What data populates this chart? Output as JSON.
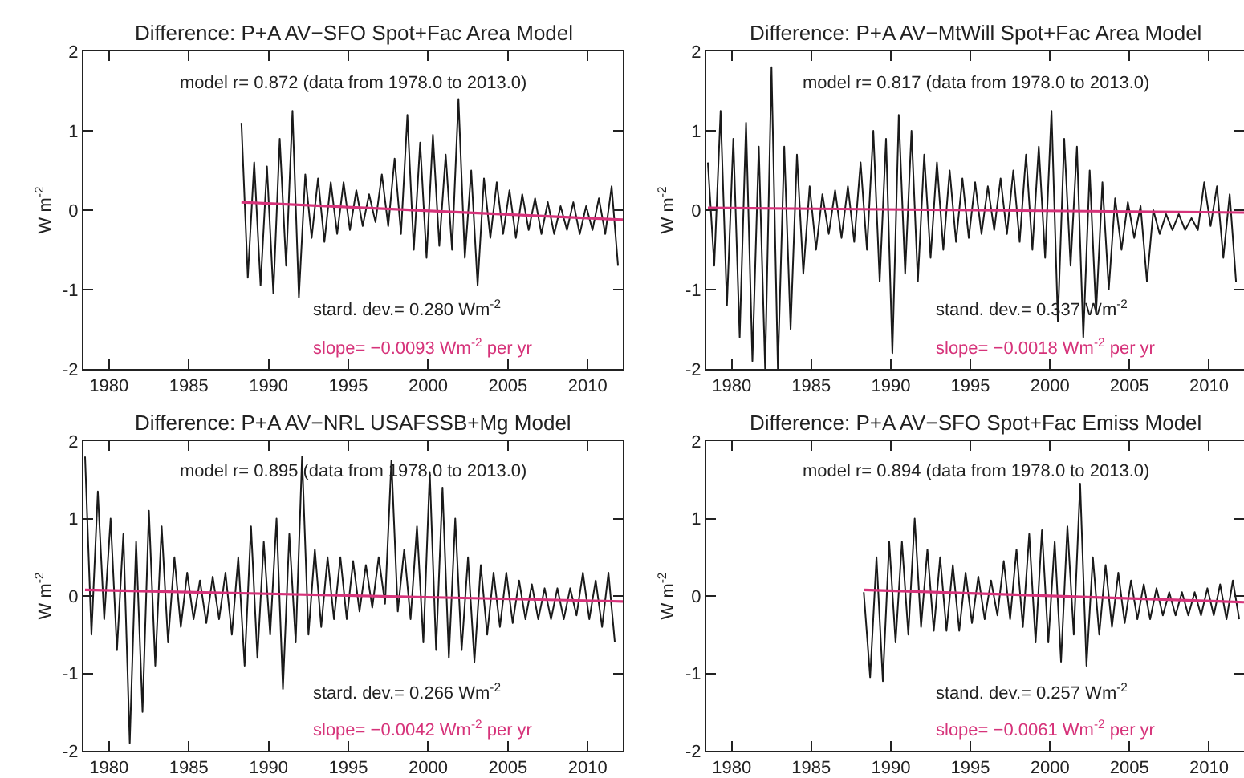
{
  "chart_data": [
    {
      "type": "line",
      "title": "Difference: P+A AV−SFO Spot+Fac Area Model",
      "ylabel": "W m$^{-2}$",
      "xlim": [
        1978.4,
        2012.2
      ],
      "ylim": [
        -2,
        2
      ],
      "xticks": [
        1980,
        1985,
        1990,
        1995,
        2000,
        2005,
        2010
      ],
      "yticks": [
        -2,
        -1,
        0,
        1,
        2
      ],
      "annotations": [
        "model r= 0.872 (data from 1978.0 to 2013.0)",
        "stard. dev.= 0.280 Wm$^{-2}$",
        "slope= −0.0093 Wm$^{-2}$ per yr"
      ],
      "series": [
        {
          "color": "#1a1a1a",
          "x": [
            1988.3,
            1988.7,
            1989.1,
            1989.5,
            1989.9,
            1990.3,
            1990.7,
            1991.1,
            1991.5,
            1991.9,
            1992.3,
            1992.7,
            1993.1,
            1993.5,
            1993.9,
            1994.3,
            1994.7,
            1995.1,
            1995.5,
            1995.9,
            1996.3,
            1996.7,
            1997.1,
            1997.5,
            1997.9,
            1998.3,
            1998.7,
            1999.1,
            1999.5,
            1999.9,
            2000.3,
            2000.7,
            2001.1,
            2001.5,
            2001.9,
            2002.3,
            2002.7,
            2003.1,
            2003.5,
            2003.9,
            2004.3,
            2004.7,
            2005.1,
            2005.5,
            2005.9,
            2006.3,
            2006.7,
            2007.1,
            2007.5,
            2007.9,
            2008.3,
            2008.7,
            2009.1,
            2009.5,
            2009.9,
            2010.3,
            2010.7,
            2011.1,
            2011.5,
            2011.9
          ],
          "values": [
            1.1,
            -0.85,
            0.6,
            -0.95,
            0.55,
            -1.05,
            0.9,
            -0.7,
            1.25,
            -1.1,
            0.45,
            -0.35,
            0.4,
            -0.4,
            0.35,
            -0.3,
            0.35,
            -0.25,
            0.25,
            -0.2,
            0.2,
            -0.15,
            0.45,
            -0.2,
            0.65,
            -0.3,
            1.2,
            -0.5,
            0.85,
            -0.6,
            0.95,
            -0.45,
            0.7,
            -0.5,
            1.4,
            -0.6,
            0.5,
            -0.95,
            0.4,
            -0.35,
            0.35,
            -0.3,
            0.25,
            -0.35,
            0.2,
            -0.25,
            0.15,
            -0.3,
            0.1,
            -0.3,
            0.05,
            -0.25,
            0.1,
            -0.3,
            0.05,
            -0.25,
            0.15,
            -0.3,
            0.3,
            -0.7
          ]
        },
        {
          "color": "#d6337a",
          "x": [
            1988.3,
            2012.2
          ],
          "values": [
            0.1,
            -0.12
          ]
        }
      ]
    },
    {
      "type": "line",
      "title": "Difference: P+A AV−MtWill Spot+Fac Area Model",
      "ylabel": "W m$^{-2}$",
      "xlim": [
        1978.4,
        2012.2
      ],
      "ylim": [
        -2,
        2
      ],
      "xticks": [
        1980,
        1985,
        1990,
        1995,
        2000,
        2005,
        2010
      ],
      "yticks": [
        -2,
        -1,
        0,
        1,
        2
      ],
      "annotations": [
        "model r= 0.817 (data from 1978.0 to 2013.0)",
        "stand. dev.= 0.337 Wm$^{-2}$",
        "slope= −0.0018 Wm$^{-2}$ per yr"
      ],
      "series": [
        {
          "color": "#1a1a1a",
          "x": [
            1978.5,
            1978.9,
            1979.3,
            1979.7,
            1980.1,
            1980.5,
            1980.9,
            1981.3,
            1981.7,
            1982.1,
            1982.5,
            1982.9,
            1983.3,
            1983.7,
            1984.1,
            1984.5,
            1984.9,
            1985.3,
            1985.7,
            1986.1,
            1986.5,
            1986.9,
            1987.3,
            1987.7,
            1988.1,
            1988.5,
            1988.9,
            1989.3,
            1989.7,
            1990.1,
            1990.5,
            1990.9,
            1991.3,
            1991.7,
            1992.1,
            1992.5,
            1992.9,
            1993.3,
            1993.7,
            1994.1,
            1994.5,
            1994.9,
            1995.3,
            1995.7,
            1996.1,
            1996.5,
            1996.9,
            1997.3,
            1997.7,
            1998.1,
            1998.5,
            1998.9,
            1999.3,
            1999.7,
            2000.1,
            2000.5,
            2000.9,
            2001.3,
            2001.7,
            2002.1,
            2002.5,
            2002.9,
            2003.3,
            2003.7,
            2004.1,
            2004.5,
            2004.9,
            2005.3,
            2005.7,
            2006.1,
            2006.5,
            2006.9,
            2007.3,
            2007.7,
            2008.1,
            2008.5,
            2008.9,
            2009.3,
            2009.7,
            2010.1,
            2010.5,
            2010.9,
            2011.3,
            2011.7
          ],
          "values": [
            0.6,
            -0.7,
            1.25,
            -1.2,
            0.9,
            -1.6,
            1.1,
            -1.9,
            0.8,
            -2.0,
            1.8,
            -2.0,
            0.8,
            -1.5,
            0.7,
            -0.8,
            0.3,
            -0.5,
            0.2,
            -0.3,
            0.25,
            -0.35,
            0.3,
            -0.4,
            0.6,
            -0.5,
            1.0,
            -0.9,
            0.9,
            -1.8,
            1.2,
            -0.8,
            1.0,
            -0.9,
            0.7,
            -0.6,
            0.6,
            -0.5,
            0.5,
            -0.4,
            0.4,
            -0.35,
            0.35,
            -0.3,
            0.3,
            -0.25,
            0.4,
            -0.3,
            0.5,
            -0.4,
            0.7,
            -0.5,
            0.8,
            -0.6,
            1.25,
            -1.4,
            0.9,
            -0.7,
            0.8,
            -1.6,
            0.5,
            -1.3,
            0.35,
            -1.0,
            0.15,
            -0.5,
            0.1,
            -0.35,
            0.05,
            -0.9,
            0.0,
            -0.3,
            -0.05,
            -0.25,
            -0.05,
            -0.25,
            -0.1,
            -0.25,
            0.35,
            -0.2,
            0.3,
            -0.6,
            0.2,
            -0.9
          ]
        },
        {
          "color": "#d6337a",
          "x": [
            1978.5,
            2012.2
          ],
          "values": [
            0.03,
            -0.03
          ]
        }
      ]
    },
    {
      "type": "line",
      "title": "Difference: P+A AV−NRL USAFSSB+Mg Model",
      "ylabel": "W m$^{-2}$",
      "xlim": [
        1978.4,
        2012.2
      ],
      "ylim": [
        -2,
        2
      ],
      "xticks": [
        1980,
        1985,
        1990,
        1995,
        2000,
        2005,
        2010
      ],
      "yticks": [
        -2,
        -1,
        0,
        1,
        2
      ],
      "annotations": [
        "model r= 0.895 (data from 1978.0 to 2013.0)",
        "stard. dev.= 0.266 Wm$^{-2}$",
        "slope= −0.0042 Wm$^{-2}$ per yr"
      ],
      "series": [
        {
          "color": "#1a1a1a",
          "x": [
            1978.5,
            1978.9,
            1979.3,
            1979.7,
            1980.1,
            1980.5,
            1980.9,
            1981.3,
            1981.7,
            1982.1,
            1982.5,
            1982.9,
            1983.3,
            1983.7,
            1984.1,
            1984.5,
            1984.9,
            1985.3,
            1985.7,
            1986.1,
            1986.5,
            1986.9,
            1987.3,
            1987.7,
            1988.1,
            1988.5,
            1988.9,
            1989.3,
            1989.7,
            1990.1,
            1990.5,
            1990.9,
            1991.3,
            1991.7,
            1992.1,
            1992.5,
            1992.9,
            1993.3,
            1993.7,
            1994.1,
            1994.5,
            1994.9,
            1995.3,
            1995.7,
            1996.1,
            1996.5,
            1996.9,
            1997.3,
            1997.7,
            1998.1,
            1998.5,
            1998.9,
            1999.3,
            1999.7,
            2000.1,
            2000.5,
            2000.9,
            2001.3,
            2001.7,
            2002.1,
            2002.5,
            2002.9,
            2003.3,
            2003.7,
            2004.1,
            2004.5,
            2004.9,
            2005.3,
            2005.7,
            2006.1,
            2006.5,
            2006.9,
            2007.3,
            2007.7,
            2008.1,
            2008.5,
            2008.9,
            2009.3,
            2009.7,
            2010.1,
            2010.5,
            2010.9,
            2011.3,
            2011.7
          ],
          "values": [
            1.8,
            -0.5,
            1.35,
            -0.3,
            1.0,
            -0.7,
            0.8,
            -1.9,
            0.7,
            -1.5,
            1.1,
            -0.9,
            0.9,
            -0.6,
            0.5,
            -0.4,
            0.3,
            -0.3,
            0.2,
            -0.35,
            0.25,
            -0.3,
            0.3,
            -0.5,
            0.5,
            -0.9,
            0.9,
            -0.8,
            0.7,
            -0.5,
            1.0,
            -1.2,
            0.8,
            -0.6,
            1.8,
            -0.5,
            0.6,
            -0.4,
            0.5,
            -0.3,
            0.5,
            -0.3,
            0.45,
            -0.2,
            0.4,
            -0.15,
            0.5,
            -0.1,
            1.75,
            -0.2,
            0.6,
            -0.3,
            0.9,
            -0.6,
            1.6,
            -0.7,
            1.4,
            -0.8,
            1.0,
            -0.7,
            0.5,
            -0.85,
            0.4,
            -0.5,
            0.3,
            -0.4,
            0.3,
            -0.35,
            0.2,
            -0.3,
            0.15,
            -0.3,
            0.1,
            -0.3,
            0.1,
            -0.3,
            0.1,
            -0.25,
            0.3,
            -0.3,
            0.2,
            -0.4,
            0.3,
            -0.6
          ]
        },
        {
          "color": "#d6337a",
          "x": [
            1978.5,
            2012.2
          ],
          "values": [
            0.08,
            -0.07
          ]
        }
      ]
    },
    {
      "type": "line",
      "title": "Difference: P+A AV−SFO Spot+Fac Emiss Model",
      "ylabel": "W m$^{-2}$",
      "xlim": [
        1978.4,
        2012.2
      ],
      "ylim": [
        -2,
        2
      ],
      "xticks": [
        1980,
        1985,
        1990,
        1995,
        2000,
        2005,
        2010
      ],
      "yticks": [
        -2,
        -1,
        0,
        1,
        2
      ],
      "annotations": [
        "model r= 0.894 (data from 1978.0 to 2013.0)",
        "stand. dev.= 0.257 Wm$^{-2}$",
        "slope= −0.0061 Wm$^{-2}$ per yr"
      ],
      "series": [
        {
          "color": "#1a1a1a",
          "x": [
            1988.3,
            1988.7,
            1989.1,
            1989.5,
            1989.9,
            1990.3,
            1990.7,
            1991.1,
            1991.5,
            1991.9,
            1992.3,
            1992.7,
            1993.1,
            1993.5,
            1993.9,
            1994.3,
            1994.7,
            1995.1,
            1995.5,
            1995.9,
            1996.3,
            1996.7,
            1997.1,
            1997.5,
            1997.9,
            1998.3,
            1998.7,
            1999.1,
            1999.5,
            1999.9,
            2000.3,
            2000.7,
            2001.1,
            2001.5,
            2001.9,
            2002.3,
            2002.7,
            2003.1,
            2003.5,
            2003.9,
            2004.3,
            2004.7,
            2005.1,
            2005.5,
            2005.9,
            2006.3,
            2006.7,
            2007.1,
            2007.5,
            2007.9,
            2008.3,
            2008.7,
            2009.1,
            2009.5,
            2009.9,
            2010.3,
            2010.7,
            2011.1,
            2011.5,
            2011.9
          ],
          "values": [
            0.05,
            -1.05,
            0.5,
            -1.1,
            0.7,
            -0.6,
            0.7,
            -0.5,
            1.0,
            -0.4,
            0.6,
            -0.45,
            0.5,
            -0.45,
            0.4,
            -0.45,
            0.3,
            -0.35,
            0.25,
            -0.3,
            0.2,
            -0.25,
            0.45,
            -0.3,
            0.6,
            -0.4,
            0.8,
            -0.6,
            0.85,
            -0.6,
            0.7,
            -0.85,
            0.9,
            -0.5,
            1.45,
            -0.9,
            0.5,
            -0.5,
            0.4,
            -0.4,
            0.3,
            -0.35,
            0.2,
            -0.3,
            0.15,
            -0.3,
            0.1,
            -0.25,
            0.05,
            -0.25,
            0.05,
            -0.25,
            0.05,
            -0.25,
            0.1,
            -0.25,
            0.15,
            -0.3,
            0.2,
            -0.3
          ]
        },
        {
          "color": "#d6337a",
          "x": [
            1988.3,
            2012.2
          ],
          "values": [
            0.08,
            -0.08
          ]
        }
      ]
    }
  ]
}
